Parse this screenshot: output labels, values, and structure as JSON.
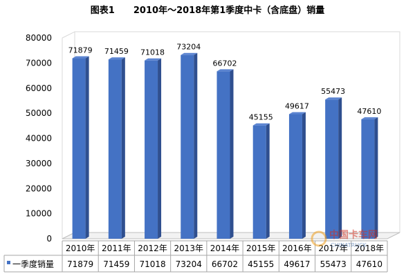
{
  "chart_data": {
    "type": "bar",
    "title": "图表1      2010年～2018年第1季度中卡（含底盘）销量",
    "categories": [
      "2010年",
      "2011年",
      "2012年",
      "2013年",
      "2014年",
      "2015年",
      "2016年",
      "2017年",
      "2018年"
    ],
    "series": [
      {
        "name": "一季度销量",
        "values": [
          71879,
          71459,
          71018,
          73204,
          66702,
          45155,
          49617,
          55473,
          47610
        ],
        "color": "#4472c4"
      }
    ],
    "ylim": [
      0,
      80000
    ],
    "yticks": [
      0,
      10000,
      20000,
      30000,
      40000,
      50000,
      60000,
      70000,
      80000
    ],
    "data_labels": true,
    "grid": false,
    "legend_position": "data-table-left",
    "data_table": true,
    "style": "3d-column"
  },
  "watermark": {
    "line1": "中国卡车网",
    "line2": "CHINATRUCK"
  }
}
